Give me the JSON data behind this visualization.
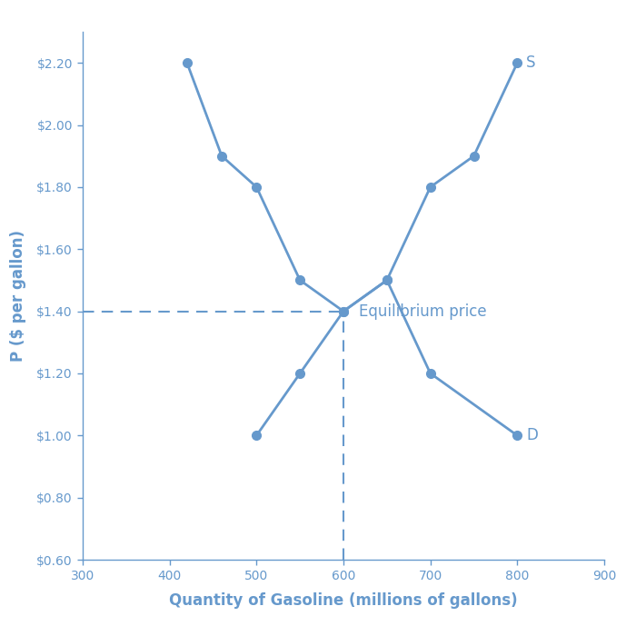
{
  "demand_x": [
    420,
    460,
    500,
    550,
    600,
    650,
    700,
    800
  ],
  "demand_y": [
    2.2,
    1.9,
    1.8,
    1.5,
    1.4,
    1.5,
    1.2,
    1.0
  ],
  "supply_x": [
    500,
    550,
    600,
    650,
    700,
    750,
    800
  ],
  "supply_y": [
    1.0,
    1.2,
    1.4,
    1.5,
    1.8,
    1.9,
    2.2
  ],
  "eq_x": 600,
  "eq_y": 1.4,
  "line_color": "#6699cc",
  "plot_bg": "#ffffff",
  "fig_bg": "#ffffff",
  "border_color": "#000000",
  "xlabel": "Quantity of Gasoline (millions of gallons)",
  "ylabel": "P ($ per gallon)",
  "xlim": [
    300,
    900
  ],
  "ylim": [
    0.6,
    2.3
  ],
  "xticks": [
    300,
    400,
    500,
    600,
    700,
    800,
    900
  ],
  "yticks": [
    0.6,
    0.8,
    1.0,
    1.2,
    1.4,
    1.6,
    1.8,
    2.0,
    2.2
  ],
  "eq_label": "Equilibrium price",
  "demand_label": "D",
  "supply_label": "S",
  "label_fontsize": 12,
  "axis_label_fontsize": 12,
  "tick_fontsize": 10,
  "markersize": 7,
  "linewidth": 2.0
}
